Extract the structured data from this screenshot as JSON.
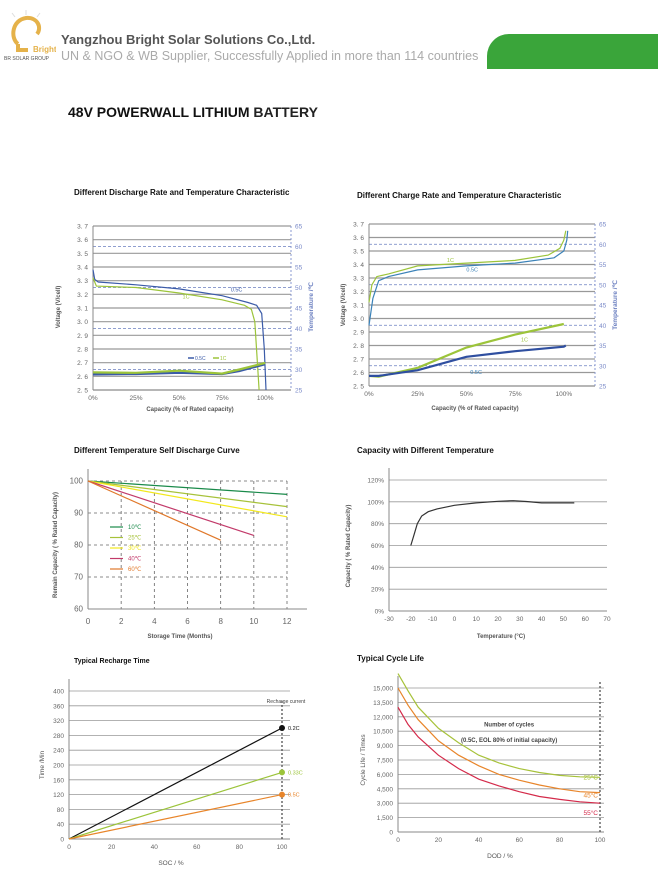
{
  "header": {
    "logo_text": "Bright",
    "logo_group": "BR SOLAR GROUP",
    "company": "Yangzhou Bright Solar Solutions Co.,Ltd.",
    "tagline": "UN & NGO & WB Supplier, Successfully Applied in more than 114 countries",
    "accent": "#3aa53a"
  },
  "document": {
    "title_bold": "48V POWERWALL LITHIUM",
    "title_rest": " BATTERY"
  },
  "chart_data": [
    {
      "type": "line",
      "title": "Different Discharge Rate and Temperature Characteristic",
      "xlabel": "Capacity  (% of Rated capacity)",
      "ylabel": "Voltage  (V/cell)",
      "y2label": "Temperature  /℃",
      "xlim": [
        0,
        115
      ],
      "ylim": [
        2.5,
        3.7
      ],
      "y2lim": [
        25,
        65
      ],
      "xticks": [
        0,
        25,
        50,
        75,
        100
      ],
      "xtick_labels": [
        "0%",
        "25%",
        "50%",
        "75%",
        "100%"
      ],
      "yticks": [
        2.5,
        2.6,
        2.7,
        2.8,
        2.9,
        3.0,
        3.1,
        3.2,
        3.3,
        3.4,
        3.5,
        3.6,
        3.7
      ],
      "ytick_labels": [
        "2. 5",
        "2. 6",
        "2. 7",
        "2. 8",
        "2. 9",
        "3. 0",
        "3. 1",
        "3. 2",
        "3. 3",
        "3. 4",
        "3. 5",
        "3. 6",
        "3. 7"
      ],
      "y2ticks": [
        25,
        30,
        35,
        40,
        45,
        50,
        55,
        60,
        65
      ],
      "y2tick_labels": [
        "25",
        "30",
        "35",
        "40",
        "45",
        "50",
        "55",
        "60",
        "65"
      ],
      "y2grid": [
        30,
        40,
        50,
        60
      ],
      "grid": "horizontal",
      "series": [
        {
          "name": "0.5C",
          "color": "#3b5ba8",
          "axis": "y",
          "points": [
            [
              0,
              3.38
            ],
            [
              1,
              3.31
            ],
            [
              3,
              3.29
            ],
            [
              25,
              3.27
            ],
            [
              50,
              3.24
            ],
            [
              75,
              3.19
            ],
            [
              90,
              3.14
            ],
            [
              95,
              3.12
            ],
            [
              98,
              3.06
            ],
            [
              99.5,
              2.8
            ],
            [
              100.5,
              2.5
            ]
          ]
        },
        {
          "name": "1C",
          "color": "#9cc43a",
          "axis": "y",
          "points": [
            [
              0,
              3.32
            ],
            [
              2,
              3.26
            ],
            [
              25,
              3.25
            ],
            [
              50,
              3.21
            ],
            [
              75,
              3.16
            ],
            [
              88,
              3.12
            ],
            [
              92,
              3.09
            ],
            [
              94,
              3.0
            ],
            [
              95.5,
              2.7
            ],
            [
              96.5,
              2.5
            ]
          ]
        },
        {
          "name": "0.5C",
          "color": "#3b5ba8",
          "axis": "y2",
          "points": [
            [
              0,
              28.8
            ],
            [
              25,
              28.9
            ],
            [
              50,
              29.2
            ],
            [
              75,
              28.9
            ],
            [
              85,
              29.6
            ],
            [
              100,
              31.3
            ]
          ]
        },
        {
          "name": "1C",
          "color": "#9cc43a",
          "axis": "y2",
          "points": [
            [
              0,
              29.3
            ],
            [
              25,
              29.2
            ],
            [
              50,
              29.7
            ],
            [
              75,
              29.0
            ],
            [
              85,
              30.0
            ],
            [
              100,
              31.6
            ]
          ]
        }
      ],
      "labels": [
        {
          "text": "0.5C",
          "x": 80,
          "y": 3.22,
          "color": "#3b5ba8"
        },
        {
          "text": "1C",
          "x": 52,
          "y": 3.17,
          "color": "#9cc43a"
        }
      ],
      "legend": {
        "position": "bottom-center",
        "items": [
          {
            "text": "0.5C",
            "color": "#3b5ba8"
          },
          {
            "text": "1C",
            "color": "#9cc43a"
          }
        ]
      }
    },
    {
      "type": "line",
      "title": "Different  Charge Rate and Temperature Characteristic",
      "xlabel": "Capacity  (% of Rated capacity)",
      "ylabel": "Voltage  (V/cell)",
      "y2label": "Temperature  /℃",
      "xlim": [
        0,
        116
      ],
      "ylim": [
        2.5,
        3.7
      ],
      "y2lim": [
        25,
        65
      ],
      "xticks": [
        0,
        25,
        50,
        75,
        100
      ],
      "xtick_labels": [
        "0%",
        "25%",
        "50%",
        "75%",
        "100%"
      ],
      "yticks": [
        2.5,
        2.6,
        2.7,
        2.8,
        2.9,
        3.0,
        3.1,
        3.2,
        3.3,
        3.4,
        3.5,
        3.6,
        3.7
      ],
      "ytick_labels": [
        "2. 5",
        "2. 6",
        "2. 7",
        "2. 8",
        "2. 9",
        "3. 0",
        "3. 1",
        "3. 2",
        "3. 3",
        "3. 4",
        "3. 5",
        "3. 6",
        "3. 7"
      ],
      "y2ticks": [
        25,
        30,
        35,
        40,
        45,
        50,
        55,
        60,
        65
      ],
      "y2tick_labels": [
        "25",
        "30",
        "35",
        "40",
        "45",
        "50",
        "55",
        "60",
        "65"
      ],
      "y2grid": [
        30,
        40,
        50,
        60
      ],
      "grid": "horizontal",
      "series": [
        {
          "name": "1C",
          "color": "#9cc43a",
          "axis": "y",
          "points": [
            [
              0,
              3.12
            ],
            [
              1.5,
              3.25
            ],
            [
              4,
              3.31
            ],
            [
              10,
              3.33
            ],
            [
              25,
              3.39
            ],
            [
              50,
              3.41
            ],
            [
              75,
              3.43
            ],
            [
              92,
              3.47
            ],
            [
              98,
              3.52
            ],
            [
              100,
              3.58
            ],
            [
              101,
              3.65
            ]
          ]
        },
        {
          "name": "0.5C",
          "color": "#3b82b8",
          "axis": "y",
          "points": [
            [
              0,
              2.95
            ],
            [
              2,
              3.15
            ],
            [
              5,
              3.28
            ],
            [
              10,
              3.31
            ],
            [
              25,
              3.36
            ],
            [
              50,
              3.39
            ],
            [
              75,
              3.41
            ],
            [
              95,
              3.45
            ],
            [
              100,
              3.5
            ],
            [
              101.5,
              3.58
            ],
            [
              102,
              3.65
            ]
          ]
        },
        {
          "name": "1C",
          "color": "#9cc43a",
          "axis": "y2",
          "points": [
            [
              0,
              27.5
            ],
            [
              5,
              27.3
            ],
            [
              25,
              29.5
            ],
            [
              50,
              34.5
            ],
            [
              75,
              37.7
            ],
            [
              100,
              40.3
            ]
          ]
        },
        {
          "name": "0.5C",
          "color": "#2f4fa0",
          "axis": "y2",
          "points": [
            [
              0,
              27.5
            ],
            [
              5,
              27.5
            ],
            [
              25,
              28.9
            ],
            [
              50,
              32.2
            ],
            [
              75,
              33.6
            ],
            [
              100,
              34.7
            ],
            [
              101,
              35
            ]
          ]
        }
      ],
      "labels": [
        {
          "text": "1C",
          "x": 40,
          "y": 3.42,
          "color": "#9cc43a"
        },
        {
          "text": "0.5C",
          "x": 50,
          "y": 3.35,
          "color": "#3b82b8"
        },
        {
          "text": "1C",
          "x": 78,
          "y": 2.83,
          "color": "#9cc43a"
        },
        {
          "text": "0.5C",
          "x": 52,
          "y": 2.59,
          "color": "#3b82b8"
        }
      ]
    },
    {
      "type": "line",
      "title": "Different Temperature Self Discharge Curve",
      "xlabel": "Storage Time (Months)",
      "ylabel": "Remain Capacity ( % Rated Capacity)",
      "xlim": [
        0,
        12
      ],
      "ylim": [
        60,
        100
      ],
      "xticks": [
        0,
        2,
        4,
        6,
        8,
        10,
        12
      ],
      "xtick_labels": [
        "0",
        "2",
        "4",
        "6",
        "8",
        "10",
        "12"
      ],
      "yticks": [
        60,
        70,
        80,
        90,
        100
      ],
      "ytick_labels": [
        "60",
        "70",
        "80",
        "90",
        "100"
      ],
      "grid": "dashed",
      "series": [
        {
          "name": "10℃",
          "color": "#1a8a4a",
          "points": [
            [
              0,
              100
            ],
            [
              12,
              95.8
            ]
          ]
        },
        {
          "name": "25℃",
          "color": "#a7c23a",
          "points": [
            [
              0,
              100
            ],
            [
              12,
              92
            ]
          ]
        },
        {
          "name": "30℃",
          "color": "#f2e81c",
          "points": [
            [
              0,
              100
            ],
            [
              12,
              88.8
            ]
          ]
        },
        {
          "name": "40℃",
          "color": "#c23a6a",
          "points": [
            [
              0,
              100
            ],
            [
              10,
              83
            ]
          ]
        },
        {
          "name": "60℃",
          "color": "#e0782a",
          "points": [
            [
              0,
              100
            ],
            [
              8,
              81.5
            ]
          ]
        }
      ],
      "legend": {
        "position": "center-left"
      }
    },
    {
      "type": "line",
      "title": "Capacity with Different Temperature",
      "xlabel": "Temperature (°C)",
      "ylabel": "Capacity ( % Rated Capacity)",
      "xlim": [
        -30,
        70
      ],
      "ylim": [
        0,
        120
      ],
      "xticks": [
        -30,
        -20,
        -10,
        0,
        10,
        20,
        30,
        40,
        50,
        60,
        70
      ],
      "xtick_labels": [
        "-30",
        "-20",
        "-10",
        "0",
        "10",
        "20",
        "30",
        "40",
        "50",
        "60",
        "70"
      ],
      "yticks": [
        0,
        20,
        40,
        60,
        80,
        100,
        120
      ],
      "ytick_labels": [
        "0%",
        "20%",
        "40%",
        "60%",
        "80%",
        "100%",
        "120%"
      ],
      "grid": "horizontal",
      "series": [
        {
          "color": "#333333",
          "points": [
            [
              -20,
              60
            ],
            [
              -18.5,
              70
            ],
            [
              -17,
              80
            ],
            [
              -15,
              87
            ],
            [
              -12,
              91
            ],
            [
              -8,
              93.5
            ],
            [
              -3,
              95.5
            ],
            [
              0,
              96.8
            ],
            [
              10,
              99
            ],
            [
              20,
              100.5
            ],
            [
              27,
              101
            ],
            [
              33,
              100.3
            ],
            [
              40,
              99
            ],
            [
              55,
              99
            ]
          ]
        }
      ]
    },
    {
      "type": "line",
      "title": "Typical Recharge Time",
      "xlabel": "SOC / %",
      "ylabel": "Time /Min",
      "xlim": [
        0,
        100
      ],
      "ylim": [
        0,
        400
      ],
      "xticks": [
        0,
        20,
        40,
        60,
        80,
        100
      ],
      "xtick_labels": [
        "0",
        "20",
        "40",
        "60",
        "80",
        "100"
      ],
      "yticks": [
        0,
        40,
        80,
        120,
        160,
        200,
        240,
        280,
        320,
        360,
        400
      ],
      "ytick_labels": [
        "0",
        "40",
        "80",
        "120",
        "160",
        "200",
        "240",
        "280",
        "320",
        "360",
        "400"
      ],
      "grid": "horizontal",
      "vline": 100,
      "annotation": "Recharge current",
      "series": [
        {
          "name": "0.2C",
          "color": "#111111",
          "points": [
            [
              0,
              0
            ],
            [
              100,
              300
            ]
          ],
          "marker": true
        },
        {
          "name": "0.33C",
          "color": "#9cc43a",
          "points": [
            [
              0,
              0
            ],
            [
              100,
              180
            ]
          ],
          "marker": true
        },
        {
          "name": "0.5C",
          "color": "#e8852a",
          "points": [
            [
              0,
              0
            ],
            [
              100,
              120
            ]
          ],
          "marker": true
        }
      ]
    },
    {
      "type": "line",
      "title": "Typical Cycle Life",
      "xlabel": "DOD / %",
      "ylabel": "Cycle Life / Times",
      "xlim": [
        0,
        100
      ],
      "ylim": [
        0,
        15000
      ],
      "xticks": [
        0,
        20,
        40,
        60,
        80,
        100
      ],
      "xtick_labels": [
        "0",
        "20",
        "40",
        "60",
        "80",
        "100"
      ],
      "yticks": [
        0,
        1500,
        3000,
        4500,
        6000,
        7500,
        9000,
        10500,
        12000,
        13500,
        15000
      ],
      "ytick_labels": [
        "0",
        "1,500",
        "3,000",
        "4,500",
        "6,000",
        "7,500",
        "9,000",
        "10,500",
        "12,000",
        "13,500",
        "15,000"
      ],
      "grid": "horizontal",
      "vline": 100,
      "annotation": "Number of cycles",
      "annotation2": "(0.5C, EOL 80% of initial capacity)",
      "series": [
        {
          "name": "25°C",
          "color": "#a7c23a",
          "points": [
            [
              0,
              16500
            ],
            [
              5,
              14700
            ],
            [
              10,
              13000
            ],
            [
              20,
              10800
            ],
            [
              30,
              9300
            ],
            [
              40,
              8000
            ],
            [
              50,
              7200
            ],
            [
              60,
              6600
            ],
            [
              70,
              6200
            ],
            [
              80,
              5900
            ],
            [
              90,
              5750
            ],
            [
              100,
              5700
            ]
          ]
        },
        {
          "name": "45°C",
          "color": "#e8852a",
          "points": [
            [
              0,
              15000
            ],
            [
              5,
              13200
            ],
            [
              10,
              11700
            ],
            [
              20,
              9500
            ],
            [
              30,
              8000
            ],
            [
              40,
              6900
            ],
            [
              50,
              6000
            ],
            [
              60,
              5400
            ],
            [
              70,
              4900
            ],
            [
              80,
              4500
            ],
            [
              90,
              4200
            ],
            [
              100,
              4100
            ]
          ]
        },
        {
          "name": "55°C",
          "color": "#d42a4a",
          "points": [
            [
              0,
              13000
            ],
            [
              5,
              11200
            ],
            [
              10,
              9900
            ],
            [
              20,
              8000
            ],
            [
              30,
              6600
            ],
            [
              40,
              5500
            ],
            [
              50,
              4800
            ],
            [
              60,
              4200
            ],
            [
              70,
              3700
            ],
            [
              80,
              3400
            ],
            [
              90,
              3150
            ],
            [
              100,
              3000
            ]
          ]
        }
      ]
    }
  ]
}
